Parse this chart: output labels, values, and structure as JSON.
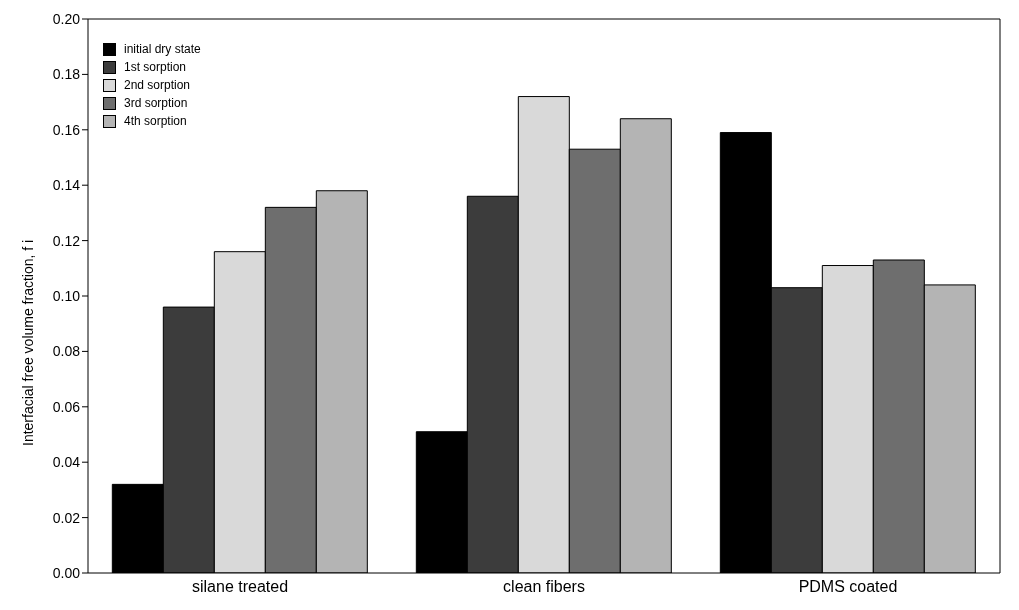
{
  "chart_data": {
    "type": "bar",
    "ylabel": "Interfacial free volume fraction, f i",
    "categories": [
      "silane treated",
      "clean fibers",
      "PDMS coated"
    ],
    "series": [
      {
        "name": "initial dry state",
        "color": "#000000",
        "values": [
          0.032,
          0.051,
          0.159
        ]
      },
      {
        "name": "1st sorption",
        "color": "#3c3c3c",
        "values": [
          0.096,
          0.136,
          0.103
        ]
      },
      {
        "name": "2nd sorption",
        "color": "#d9d9d9",
        "values": [
          0.116,
          0.172,
          0.111
        ]
      },
      {
        "name": "3rd sorption",
        "color": "#6e6e6e",
        "values": [
          0.132,
          0.153,
          0.113
        ]
      },
      {
        "name": "4th sorption",
        "color": "#b4b4b4",
        "values": [
          0.138,
          0.164,
          0.104
        ]
      }
    ],
    "ylim": [
      0,
      0.2
    ],
    "yticks": [
      {
        "value": 0,
        "label": "0.00"
      },
      {
        "value": 0.02,
        "label": "0.02"
      },
      {
        "value": 0.04,
        "label": "0.04"
      },
      {
        "value": 0.06,
        "label": "0.06"
      },
      {
        "value": 0.08,
        "label": "0.08"
      },
      {
        "value": 0.1,
        "label": "0.10"
      },
      {
        "value": 0.12,
        "label": "0.12"
      },
      {
        "value": 0.14,
        "label": "0.14"
      },
      {
        "value": 0.16,
        "label": "0.16"
      },
      {
        "value": 0.18,
        "label": "0.18"
      },
      {
        "value": 0.2,
        "label": "0.20"
      }
    ],
    "grid": false,
    "legend": "top left"
  }
}
